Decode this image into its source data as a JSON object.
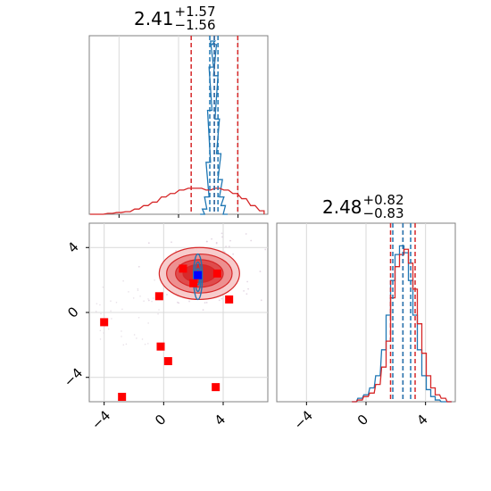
{
  "chart_data": [
    {
      "type": "histogram",
      "panel": "top-left",
      "title": {
        "value": "2.41",
        "plus": "+1.57",
        "minus": "−1.56"
      },
      "xlim": [
        -6,
        6
      ],
      "red_quantiles": [
        0.85,
        2.41,
        3.98
      ],
      "blue_quantiles": [
        2.1,
        2.4,
        2.65
      ],
      "series": [
        {
          "color": "#d62728",
          "x": [
            -5.8,
            -5.2,
            -4.6,
            -4.0,
            -3.4,
            -2.8,
            -2.2,
            -1.6,
            -1.0,
            -0.4,
            0.2,
            0.8,
            1.4,
            2.0,
            2.6,
            3.2,
            3.8,
            4.4,
            5.0,
            5.6
          ],
          "values": [
            0.0,
            0.0,
            0.005,
            0.01,
            0.015,
            0.03,
            0.05,
            0.07,
            0.1,
            0.12,
            0.14,
            0.15,
            0.15,
            0.14,
            0.15,
            0.14,
            0.12,
            0.09,
            0.05,
            0.02
          ]
        },
        {
          "color": "#1f77b4",
          "x": [
            1.6,
            1.75,
            1.9,
            2.0,
            2.1,
            2.2,
            2.3,
            2.4,
            2.5,
            2.6,
            2.7,
            2.8,
            2.9,
            3.0,
            3.15
          ],
          "values": [
            0.0,
            0.03,
            0.1,
            0.3,
            0.6,
            0.85,
            1.0,
            0.98,
            0.8,
            0.55,
            0.35,
            0.2,
            0.1,
            0.05,
            0.0
          ]
        }
      ]
    },
    {
      "type": "scatter-contour",
      "panel": "bottom-left",
      "xlim": [
        -5,
        7
      ],
      "ylim": [
        -5.5,
        5.5
      ],
      "xticks": [
        "−4",
        "0",
        "4"
      ],
      "yticks": [
        "−4",
        "0",
        "4"
      ],
      "red_squares": [
        [
          -4.0,
          -0.6
        ],
        [
          -2.8,
          -5.2
        ],
        [
          -0.3,
          1.0
        ],
        [
          -0.2,
          -2.1
        ],
        [
          0.3,
          -3.0
        ],
        [
          1.3,
          2.7
        ],
        [
          2.0,
          1.8
        ],
        [
          3.6,
          2.4
        ],
        [
          3.5,
          -4.6
        ],
        [
          4.4,
          0.8
        ]
      ],
      "blue_square": [
        2.3,
        2.3
      ],
      "red_contour": {
        "color": "#d62728",
        "center": [
          2.4,
          2.4
        ],
        "levels": [
          [
            2.7,
            1.6
          ],
          [
            2.2,
            1.2
          ],
          [
            1.6,
            0.85
          ],
          [
            1.1,
            0.55
          ]
        ]
      },
      "blue_contour": {
        "color": "#1f77b4",
        "center": [
          2.3,
          2.2
        ],
        "levels": [
          [
            0.3,
            1.4
          ],
          [
            0.2,
            0.9
          ],
          [
            0.12,
            0.5
          ]
        ]
      }
    },
    {
      "type": "histogram",
      "panel": "bottom-right",
      "title": {
        "value": "2.48",
        "plus": "+0.82",
        "minus": "−0.83"
      },
      "xlim": [
        -6,
        6
      ],
      "xticks": [
        "−4",
        "0",
        "4"
      ],
      "red_quantiles": [
        1.65,
        2.48,
        3.3
      ],
      "blue_quantiles": [
        1.8,
        2.48,
        3.0
      ],
      "series": [
        {
          "color": "#d62728",
          "x": [
            -0.8,
            -0.4,
            0.0,
            0.4,
            0.8,
            1.2,
            1.5,
            1.8,
            2.1,
            2.4,
            2.7,
            3.0,
            3.3,
            3.6,
            3.9,
            4.2,
            4.5,
            4.8,
            5.2,
            5.6
          ],
          "values": [
            0.0,
            0.01,
            0.03,
            0.05,
            0.1,
            0.2,
            0.35,
            0.6,
            0.78,
            0.85,
            0.88,
            0.8,
            0.65,
            0.45,
            0.28,
            0.15,
            0.08,
            0.04,
            0.02,
            0.0
          ]
        },
        {
          "color": "#1f77b4",
          "x": [
            -0.8,
            -0.4,
            0.0,
            0.4,
            0.8,
            1.2,
            1.5,
            1.8,
            2.1,
            2.4,
            2.7,
            3.0,
            3.3,
            3.6,
            3.9,
            4.2,
            4.5,
            4.8,
            5.2,
            5.6
          ],
          "values": [
            0.0,
            0.02,
            0.04,
            0.08,
            0.15,
            0.3,
            0.5,
            0.7,
            0.85,
            0.9,
            0.86,
            0.7,
            0.5,
            0.3,
            0.15,
            0.07,
            0.03,
            0.01,
            0.0,
            0.0
          ]
        }
      ]
    }
  ]
}
